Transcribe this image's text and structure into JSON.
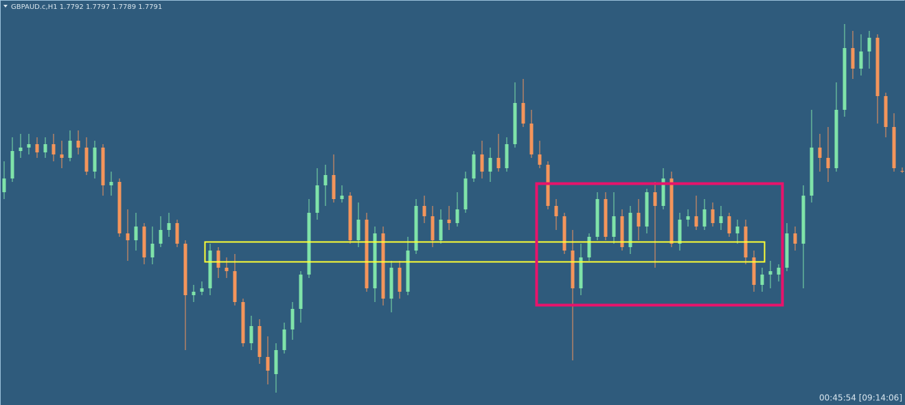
{
  "chart_data": {
    "type": "candlestick",
    "title": "GBPAUD.c,H1  1.7792 1.7797 1.7789 1.7791",
    "timer": "00:45:54 [09:14:06]",
    "bull_color": "#7fe3a9",
    "bear_color": "#f4955b",
    "ylim": [
      1.7451,
      1.8041
    ],
    "candles": [
      [
        1.7761,
        1.7806,
        1.7751,
        1.7781
      ],
      [
        1.7781,
        1.7841,
        1.7776,
        1.7821
      ],
      [
        1.7821,
        1.7846,
        1.7811,
        1.7826
      ],
      [
        1.7826,
        1.7846,
        1.7816,
        1.7831
      ],
      [
        1.7831,
        1.7841,
        1.7811,
        1.7819
      ],
      [
        1.7819,
        1.7841,
        1.7811,
        1.7831
      ],
      [
        1.7831,
        1.7846,
        1.7806,
        1.7816
      ],
      [
        1.7816,
        1.7836,
        1.7796,
        1.7811
      ],
      [
        1.7811,
        1.7851,
        1.7806,
        1.7836
      ],
      [
        1.7836,
        1.7851,
        1.7816,
        1.7826
      ],
      [
        1.7826,
        1.7841,
        1.7786,
        1.7791
      ],
      [
        1.7791,
        1.7836,
        1.7781,
        1.7826
      ],
      [
        1.7826,
        1.7831,
        1.7756,
        1.7771
      ],
      [
        1.7771,
        1.7791,
        1.7756,
        1.7776
      ],
      [
        1.7776,
        1.7781,
        1.7696,
        1.7701
      ],
      [
        1.7701,
        1.7736,
        1.7661,
        1.7691
      ],
      [
        1.7691,
        1.7731,
        1.7676,
        1.7711
      ],
      [
        1.7711,
        1.7716,
        1.7656,
        1.7666
      ],
      [
        1.7666,
        1.7711,
        1.7656,
        1.7686
      ],
      [
        1.7686,
        1.7726,
        1.7681,
        1.7706
      ],
      [
        1.7706,
        1.7731,
        1.7696,
        1.7716
      ],
      [
        1.7716,
        1.7721,
        1.7681,
        1.7686
      ],
      [
        1.7686,
        1.7691,
        1.7531,
        1.7611
      ],
      [
        1.7611,
        1.7626,
        1.7601,
        1.7616
      ],
      [
        1.7616,
        1.7631,
        1.7611,
        1.7621
      ],
      [
        1.7621,
        1.7686,
        1.7611,
        1.7676
      ],
      [
        1.7676,
        1.7681,
        1.7636,
        1.7651
      ],
      [
        1.7651,
        1.7666,
        1.7636,
        1.7646
      ],
      [
        1.7646,
        1.7671,
        1.7596,
        1.7601
      ],
      [
        1.7601,
        1.7606,
        1.7536,
        1.7541
      ],
      [
        1.7541,
        1.7581,
        1.7531,
        1.7566
      ],
      [
        1.7566,
        1.7576,
        1.7511,
        1.7521
      ],
      [
        1.7521,
        1.7551,
        1.7481,
        1.7501
      ],
      [
        1.7496,
        1.7541,
        1.7469,
        1.7531
      ],
      [
        1.7531,
        1.7571,
        1.7526,
        1.7561
      ],
      [
        1.7561,
        1.7601,
        1.7546,
        1.7591
      ],
      [
        1.7591,
        1.7646,
        1.7571,
        1.7641
      ],
      [
        1.7641,
        1.7751,
        1.7636,
        1.7731
      ],
      [
        1.7731,
        1.7796,
        1.7721,
        1.7771
      ],
      [
        1.7771,
        1.7801,
        1.7741,
        1.7786
      ],
      [
        1.7786,
        1.7816,
        1.7746,
        1.7751
      ],
      [
        1.7751,
        1.7771,
        1.7746,
        1.7756
      ],
      [
        1.7756,
        1.7761,
        1.7686,
        1.7691
      ],
      [
        1.7691,
        1.7746,
        1.7681,
        1.7721
      ],
      [
        1.7721,
        1.7731,
        1.7616,
        1.7621
      ],
      [
        1.7621,
        1.7711,
        1.7601,
        1.7701
      ],
      [
        1.7701,
        1.7711,
        1.7596,
        1.7606
      ],
      [
        1.7606,
        1.7661,
        1.7586,
        1.7651
      ],
      [
        1.7651,
        1.7661,
        1.7606,
        1.7616
      ],
      [
        1.7616,
        1.7696,
        1.7611,
        1.7676
      ],
      [
        1.7676,
        1.7751,
        1.7671,
        1.7741
      ],
      [
        1.7741,
        1.7756,
        1.7716,
        1.7726
      ],
      [
        1.7726,
        1.7741,
        1.7681,
        1.7691
      ],
      [
        1.7691,
        1.7736,
        1.7686,
        1.7721
      ],
      [
        1.7721,
        1.7741,
        1.7706,
        1.7716
      ],
      [
        1.7716,
        1.7761,
        1.7711,
        1.7736
      ],
      [
        1.7736,
        1.7791,
        1.7731,
        1.7781
      ],
      [
        1.7781,
        1.7821,
        1.7776,
        1.7816
      ],
      [
        1.7816,
        1.7836,
        1.7781,
        1.7791
      ],
      [
        1.7791,
        1.7826,
        1.7776,
        1.7811
      ],
      [
        1.7811,
        1.7846,
        1.7791,
        1.7796
      ],
      [
        1.7796,
        1.7841,
        1.7791,
        1.7831
      ],
      [
        1.7831,
        1.7921,
        1.7826,
        1.7891
      ],
      [
        1.7891,
        1.7926,
        1.7856,
        1.7861
      ],
      [
        1.7861,
        1.7881,
        1.7811,
        1.7816
      ],
      [
        1.7816,
        1.7836,
        1.7796,
        1.7801
      ],
      [
        1.7801,
        1.7806,
        1.7736,
        1.7741
      ],
      [
        1.7741,
        1.7751,
        1.7706,
        1.7726
      ],
      [
        1.7726,
        1.7731,
        1.7671,
        1.7676
      ],
      [
        1.7676,
        1.7706,
        1.7516,
        1.7621
      ],
      [
        1.7621,
        1.7686,
        1.7611,
        1.7666
      ],
      [
        1.7666,
        1.7701,
        1.7661,
        1.7696
      ],
      [
        1.7696,
        1.7761,
        1.7691,
        1.7751
      ],
      [
        1.7751,
        1.7761,
        1.7691,
        1.7696
      ],
      [
        1.7696,
        1.7761,
        1.7686,
        1.7726
      ],
      [
        1.7726,
        1.7736,
        1.7676,
        1.7681
      ],
      [
        1.7681,
        1.7741,
        1.7671,
        1.7731
      ],
      [
        1.7731,
        1.7751,
        1.7691,
        1.7711
      ],
      [
        1.7711,
        1.7766,
        1.7701,
        1.7761
      ],
      [
        1.7761,
        1.7776,
        1.7651,
        1.7741
      ],
      [
        1.7741,
        1.7796,
        1.7736,
        1.7781
      ],
      [
        1.7781,
        1.7791,
        1.7681,
        1.7686
      ],
      [
        1.7686,
        1.7731,
        1.7676,
        1.7721
      ],
      [
        1.7721,
        1.7736,
        1.7711,
        1.7726
      ],
      [
        1.7726,
        1.7756,
        1.7706,
        1.7711
      ],
      [
        1.7711,
        1.7751,
        1.7706,
        1.7736
      ],
      [
        1.7736,
        1.7746,
        1.7711,
        1.7716
      ],
      [
        1.7716,
        1.7741,
        1.7706,
        1.7726
      ],
      [
        1.7726,
        1.7731,
        1.7696,
        1.7701
      ],
      [
        1.7701,
        1.7721,
        1.7686,
        1.7711
      ],
      [
        1.7711,
        1.7721,
        1.7656,
        1.7666
      ],
      [
        1.7666,
        1.7676,
        1.7616,
        1.7626
      ],
      [
        1.7626,
        1.7651,
        1.7616,
        1.7641
      ],
      [
        1.7641,
        1.7661,
        1.7621,
        1.7646
      ],
      [
        1.7641,
        1.7656,
        1.7631,
        1.7651
      ],
      [
        1.7651,
        1.7716,
        1.7646,
        1.7701
      ],
      [
        1.7701,
        1.7711,
        1.7676,
        1.7686
      ],
      [
        1.7686,
        1.7771,
        1.7621,
        1.7756
      ],
      [
        1.7756,
        1.7881,
        1.7746,
        1.7826
      ],
      [
        1.7826,
        1.7846,
        1.7791,
        1.7811
      ],
      [
        1.7811,
        1.7856,
        1.7776,
        1.7796
      ],
      [
        1.7796,
        1.7921,
        1.7791,
        1.7881
      ],
      [
        1.7881,
        1.8006,
        1.7871,
        1.7971
      ],
      [
        1.7971,
        1.7996,
        1.7926,
        1.7941
      ],
      [
        1.7941,
        1.7991,
        1.7931,
        1.7966
      ],
      [
        1.7966,
        1.7996,
        1.7941,
        1.7986
      ],
      [
        1.7986,
        1.7991,
        1.7861,
        1.7901
      ],
      [
        1.7901,
        1.7906,
        1.7841,
        1.7856
      ],
      [
        1.7856,
        1.7876,
        1.7791,
        1.7796
      ],
      [
        1.7792,
        1.7797,
        1.7789,
        1.7791
      ]
    ]
  }
}
